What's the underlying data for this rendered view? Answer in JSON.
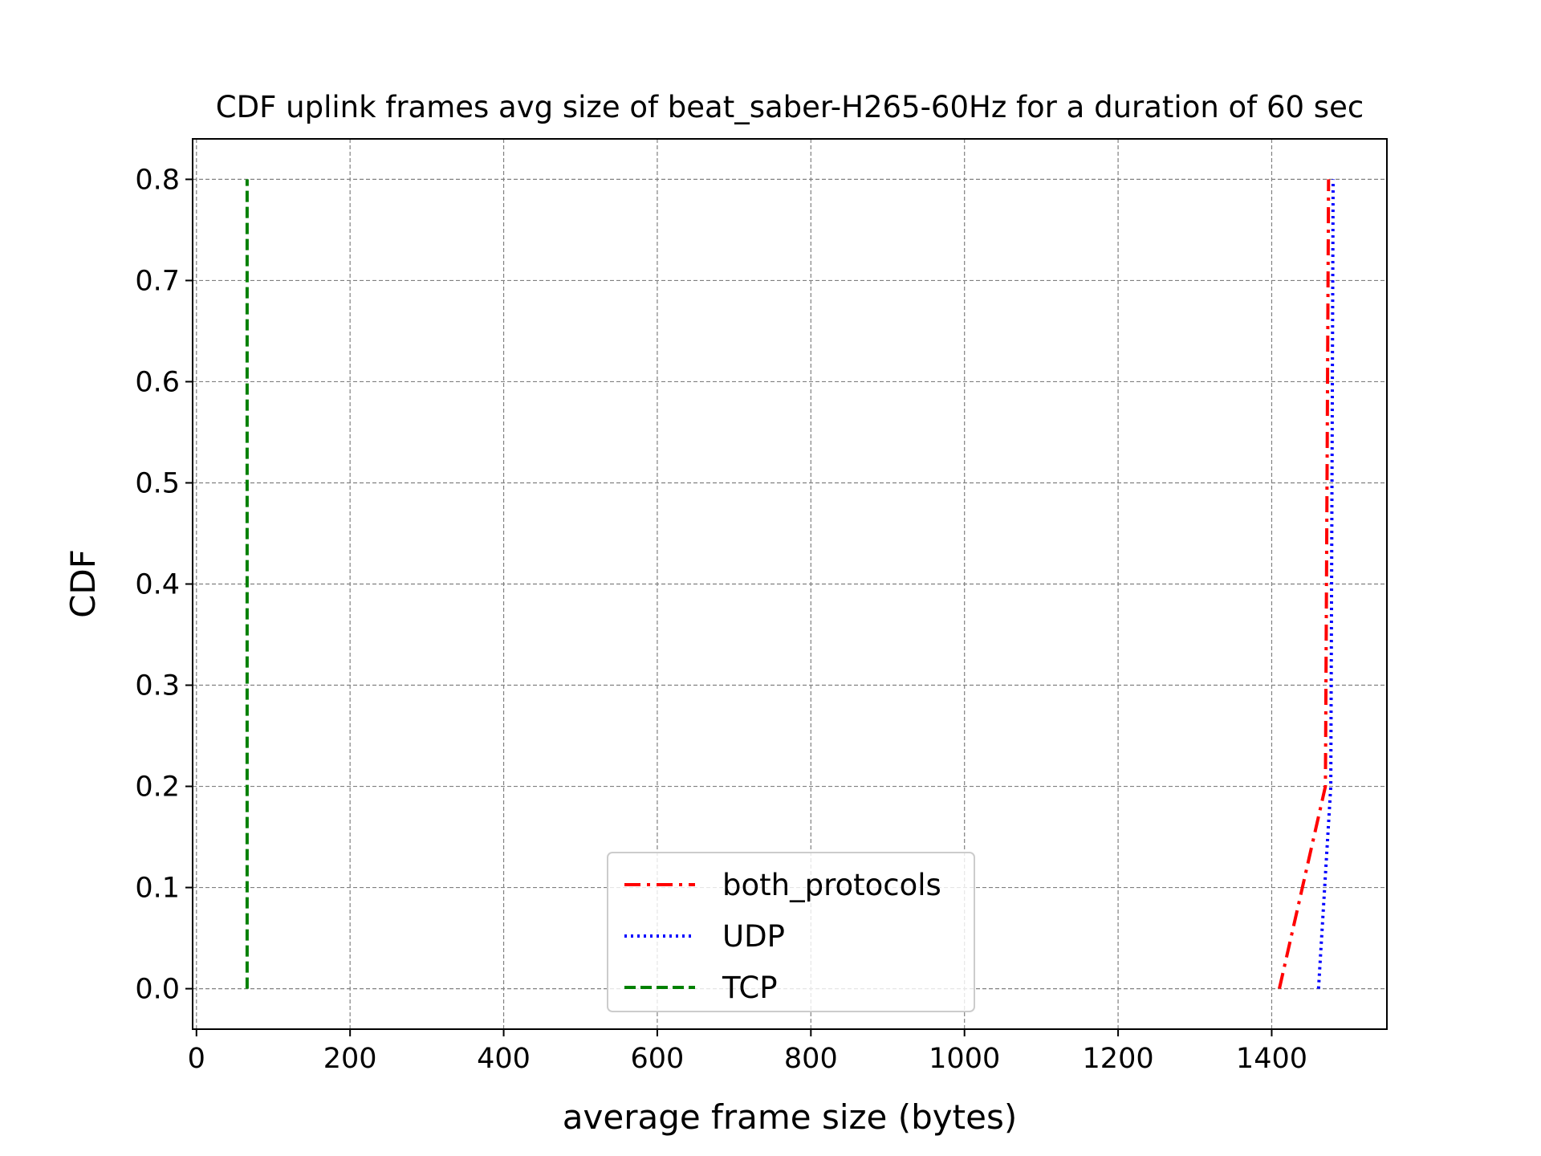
{
  "chart_data": {
    "type": "line",
    "title": "CDF uplink frames avg size of beat_saber-H265-60Hz for a duration of 60 sec",
    "xlabel": "average frame size (bytes)",
    "ylabel": "CDF",
    "xlim": [
      -5,
      1550
    ],
    "ylim": [
      -0.04,
      0.84
    ],
    "xticks": [
      0,
      200,
      400,
      600,
      800,
      1000,
      1200,
      1400
    ],
    "xtick_labels": [
      "0",
      "200",
      "400",
      "600",
      "800",
      "1000",
      "1200",
      "1400"
    ],
    "yticks": [
      0.0,
      0.1,
      0.2,
      0.3,
      0.4,
      0.5,
      0.6,
      0.7,
      0.8
    ],
    "ytick_labels": [
      "0.0",
      "0.1",
      "0.2",
      "0.3",
      "0.4",
      "0.5",
      "0.6",
      "0.7",
      "0.8"
    ],
    "grid": true,
    "legend_position": "lower center",
    "series": [
      {
        "name": "both_protocols",
        "color": "#ff0000",
        "linestyle": "dashdot",
        "x": [
          1410,
          1470,
          1472,
          1474
        ],
        "y": [
          0.0,
          0.2,
          0.5,
          0.8
        ]
      },
      {
        "name": "UDP",
        "color": "#0000ff",
        "linestyle": "dotted",
        "x": [
          1461,
          1477,
          1478,
          1480
        ],
        "y": [
          0.0,
          0.2,
          0.4,
          0.8
        ]
      },
      {
        "name": "TCP",
        "color": "#008000",
        "linestyle": "dashed",
        "x": [
          66,
          66
        ],
        "y": [
          0.0,
          0.8
        ]
      }
    ]
  }
}
